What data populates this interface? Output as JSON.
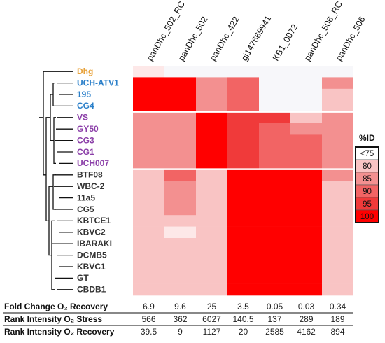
{
  "chart_data": {
    "type": "heatmap",
    "columns": [
      "panDhc_502_RC",
      "panDhc_502",
      "panDhc_422",
      "gi147669941",
      "KB1_0072",
      "panDhc_506_RC",
      "panDhc_506"
    ],
    "rows": [
      {
        "name": "Dhg",
        "color": "#e8a23a"
      },
      {
        "name": "UCH-ATV1",
        "color": "#2a7fc9"
      },
      {
        "name": "195",
        "color": "#2a7fc9"
      },
      {
        "name": "CG4",
        "color": "#2a7fc9"
      },
      {
        "name": "VS",
        "color": "#8b3fa8"
      },
      {
        "name": "GY50",
        "color": "#8b3fa8"
      },
      {
        "name": "CG3",
        "color": "#8b3fa8"
      },
      {
        "name": "CG1",
        "color": "#8b3fa8"
      },
      {
        "name": "UCH007",
        "color": "#8b3fa8"
      },
      {
        "name": "BTF08",
        "color": "#333333"
      },
      {
        "name": "WBC-2",
        "color": "#333333"
      },
      {
        "name": "11a5",
        "color": "#333333"
      },
      {
        "name": "CG5",
        "color": "#333333"
      },
      {
        "name": "KBTCE1",
        "color": "#333333"
      },
      {
        "name": "KBVC2",
        "color": "#333333"
      },
      {
        "name": "IBARAKI",
        "color": "#333333"
      },
      {
        "name": "DCMB5",
        "color": "#333333"
      },
      {
        "name": "KBVC1",
        "color": "#333333"
      },
      {
        "name": "GT",
        "color": "#333333"
      },
      {
        "name": "CBDB1",
        "color": "#333333"
      }
    ],
    "values": [
      [
        75,
        0,
        0,
        0,
        0,
        0,
        0
      ],
      [
        100,
        100,
        85,
        90,
        0,
        0,
        85
      ],
      [
        100,
        100,
        85,
        90,
        0,
        0,
        80
      ],
      [
        100,
        100,
        85,
        90,
        0,
        0,
        80
      ],
      [
        85,
        85,
        100,
        95,
        95,
        80,
        85
      ],
      [
        85,
        85,
        100,
        95,
        90,
        85,
        85
      ],
      [
        85,
        85,
        100,
        95,
        90,
        90,
        85
      ],
      [
        85,
        85,
        100,
        95,
        90,
        90,
        85
      ],
      [
        85,
        85,
        100,
        95,
        90,
        90,
        85
      ],
      [
        80,
        90,
        80,
        100,
        100,
        100,
        85
      ],
      [
        80,
        85,
        80,
        100,
        100,
        100,
        80
      ],
      [
        80,
        85,
        80,
        100,
        100,
        100,
        80
      ],
      [
        80,
        85,
        80,
        100,
        100,
        100,
        80
      ],
      [
        80,
        80,
        80,
        100,
        100,
        100,
        80
      ],
      [
        80,
        75,
        80,
        100,
        100,
        100,
        80
      ],
      [
        80,
        80,
        80,
        100,
        100,
        100,
        80
      ],
      [
        80,
        80,
        80,
        100,
        100,
        100,
        80
      ],
      [
        80,
        80,
        80,
        100,
        100,
        100,
        80
      ],
      [
        80,
        80,
        80,
        100,
        100,
        100,
        80
      ],
      [
        80,
        80,
        80,
        100,
        100,
        100,
        80
      ]
    ],
    "legend": {
      "title": "%ID",
      "levels": [
        {
          "label": "<75",
          "color": "#ffffff"
        },
        {
          "label": "80",
          "color": "#f9c4c4"
        },
        {
          "label": "85",
          "color": "#f39090"
        },
        {
          "label": "90",
          "color": "#f26464"
        },
        {
          "label": "95",
          "color": "#f03a3a"
        },
        {
          "label": "100",
          "color": "#ff0000"
        }
      ]
    },
    "bottom_table": [
      {
        "label": "Fold Change O₂ Recovery",
        "values": [
          "6.9",
          "9.6",
          "25",
          "3.5",
          "0.05",
          "0.03",
          "0.34"
        ]
      },
      {
        "label": "Rank Intensity O₂ Stress",
        "values": [
          "566",
          "362",
          "6027",
          "140.5",
          "137",
          "289",
          "189"
        ]
      },
      {
        "label": "Rank Intensity O₂ Recovery",
        "values": [
          "39.5",
          "9",
          "1127",
          "20",
          "2585",
          "4162",
          "894"
        ]
      }
    ]
  }
}
